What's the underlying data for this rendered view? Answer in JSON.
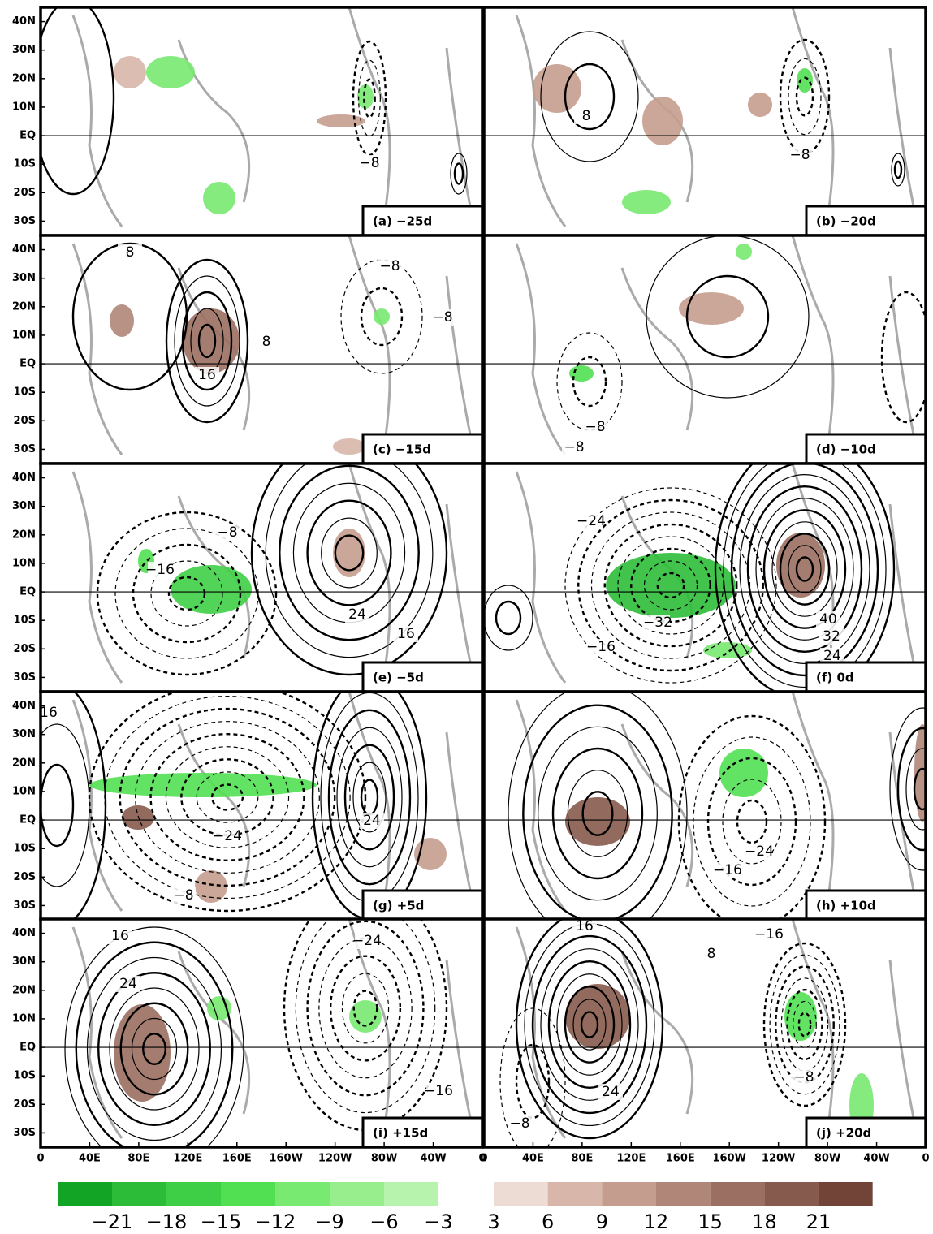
{
  "figure": {
    "lat_range": [
      -35,
      45
    ],
    "lon_range": [
      0,
      360
    ],
    "lat_ticks": [
      {
        "value": 40,
        "label": "40N"
      },
      {
        "value": 30,
        "label": "30N"
      },
      {
        "value": 20,
        "label": "20N"
      },
      {
        "value": 10,
        "label": "10N"
      },
      {
        "value": 0,
        "label": "EQ"
      },
      {
        "value": -10,
        "label": "10S"
      },
      {
        "value": -20,
        "label": "20S"
      },
      {
        "value": -30,
        "label": "30S"
      }
    ],
    "lon_ticks": [
      0,
      {
        "value": 40,
        "label": "40E"
      },
      {
        "value": 80,
        "label": "80E"
      },
      {
        "value": 120,
        "label": "120E"
      },
      {
        "value": 160,
        "label": "160E"
      },
      {
        "value": 200,
        "label": "160W"
      },
      {
        "value": 240,
        "label": "120W"
      },
      {
        "value": 280,
        "label": "80W"
      },
      {
        "value": 320,
        "label": "40W"
      },
      {
        "value": 360,
        "label": "0"
      }
    ],
    "panels": [
      {
        "label": "(a) −25d",
        "contour_labels": [
          "−8"
        ]
      },
      {
        "label": "(b) −20d",
        "contour_labels": [
          "8",
          "−8"
        ]
      },
      {
        "label": "(c) −15d",
        "contour_labels": [
          "8",
          "16",
          "8",
          "−8",
          "−8"
        ]
      },
      {
        "label": "(d) −10d",
        "contour_labels": [
          "−8",
          "−8"
        ]
      },
      {
        "label": "(e) −5d",
        "contour_labels": [
          "−8",
          "−16",
          "24",
          "16"
        ]
      },
      {
        "label": "(f) 0d",
        "contour_labels": [
          "−24",
          "40",
          "32",
          "24",
          "−32",
          "−16"
        ]
      },
      {
        "label": "(g) +5d",
        "contour_labels": [
          "16",
          "24",
          "−24",
          "−8"
        ]
      },
      {
        "label": "(h) +10d",
        "contour_labels": [
          "−24",
          "−16"
        ]
      },
      {
        "label": "(i) +15d",
        "contour_labels": [
          "16",
          "24",
          "−24",
          "−16"
        ]
      },
      {
        "label": "(j) +20d",
        "contour_labels": [
          "16",
          "−16",
          "8",
          "24",
          "−8",
          "−8"
        ]
      }
    ],
    "colorbar": {
      "negative": {
        "colors": [
          "#12a424",
          "#2cbc38",
          "#3fcf46",
          "#52e053",
          "#78e971",
          "#98ee8d",
          "#b8f3ad"
        ],
        "ticks": [
          {
            "value": -21,
            "label": "−21"
          },
          {
            "value": -18,
            "label": "−18"
          },
          {
            "value": -15,
            "label": "−15"
          },
          {
            "value": -12,
            "label": "−12"
          },
          {
            "value": -9,
            "label": "−9"
          },
          {
            "value": -6,
            "label": "−6"
          },
          {
            "value": -3,
            "label": "−3"
          }
        ]
      },
      "positive": {
        "colors": [
          "#ecdcd3",
          "#d8b6a9",
          "#c59d8f",
          "#b08678",
          "#9b6f61",
          "#865a4c",
          "#724438"
        ],
        "ticks": [
          3,
          6,
          9,
          12,
          15,
          18,
          21
        ]
      }
    }
  }
}
